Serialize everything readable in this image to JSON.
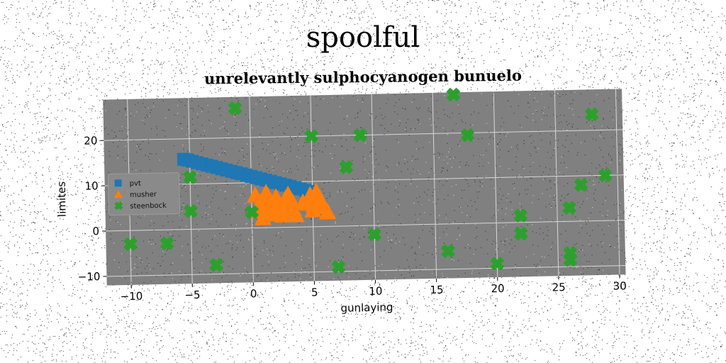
{
  "suptitle": "spoolful",
  "chart_data": {
    "type": "scatter",
    "title": "unrelevantly sulphocyanogen bunuelo",
    "xlabel": "gunlaying",
    "ylabel": "limites",
    "xlim": [
      -12,
      30.5
    ],
    "ylim": [
      -12,
      29
    ],
    "xticks": [
      -10,
      -5,
      0,
      5,
      10,
      15,
      20,
      25,
      30
    ],
    "yticks": [
      -10,
      0,
      10,
      20
    ],
    "xtick_labels": [
      "−10",
      "−5",
      "0",
      "5",
      "10",
      "15",
      "20",
      "25",
      "30"
    ],
    "ytick_labels": [
      "−10",
      "0",
      "10",
      "20"
    ],
    "grid": true,
    "background": "#808080",
    "legend_position": "center-left",
    "series": [
      {
        "name": "pvt",
        "marker": "square",
        "color": "#1f77b4",
        "x": [
          -5.5,
          -5.2,
          -4.8,
          -4.4,
          -4.0,
          -3.6,
          -3.2,
          -2.8,
          -2.4,
          -2.0,
          -1.6,
          -1.2,
          -0.8,
          -0.4,
          0.0,
          0.4,
          0.8,
          1.2,
          1.6,
          2.0,
          2.4,
          2.8,
          3.2,
          3.6,
          4.0,
          4.4,
          4.8
        ],
        "y": [
          15.5,
          15.3,
          15.0,
          14.7,
          14.4,
          14.1,
          13.8,
          13.5,
          13.2,
          12.9,
          12.6,
          12.3,
          12.0,
          11.7,
          11.4,
          11.1,
          10.8,
          10.5,
          10.2,
          9.9,
          9.6,
          9.3,
          9.0,
          8.7,
          8.4,
          8.1,
          7.8
        ]
      },
      {
        "name": "musher",
        "marker": "triangle",
        "color": "#ff7f0e",
        "x": [
          0.3,
          0.7,
          1.0,
          1.2,
          1.5,
          1.8,
          2.0,
          2.3,
          2.6,
          3.0,
          3.3,
          3.6,
          0.6,
          1.1,
          1.7,
          2.2,
          2.8,
          3.4,
          4.2,
          4.8,
          5.1,
          5.3,
          5.6,
          5.9,
          6.2,
          5.0,
          4.6,
          1.4,
          0.9,
          2.5
        ],
        "y": [
          7.0,
          5.5,
          4.0,
          7.5,
          5.0,
          3.2,
          6.5,
          4.5,
          3.5,
          7.0,
          5.5,
          2.5,
          3.5,
          6.0,
          2.8,
          4.8,
          6.2,
          3.8,
          5.2,
          6.8,
          4.6,
          7.5,
          5.8,
          4.2,
          3.0,
          3.5,
          5.0,
          4.0,
          2.0,
          2.5
        ]
      },
      {
        "name": "steenbock",
        "marker": "plus",
        "color": "#2ca02c",
        "x": [
          -1.2,
          16.7,
          5.0,
          9.0,
          28.0,
          17.8,
          7.8,
          -5.0,
          29.0,
          27.0,
          -5.0,
          0.0,
          22.0,
          26.0,
          22.0,
          10.0,
          -10.0,
          -7.0,
          16.0,
          26.0,
          26.0,
          -3.0,
          7.0,
          20.0
        ],
        "y": [
          26.5,
          28.5,
          20.0,
          20.0,
          23.5,
          19.5,
          13.0,
          11.5,
          10.0,
          8.0,
          4.0,
          3.5,
          1.5,
          3.0,
          -2.5,
          -2.0,
          -3.0,
          -3.0,
          -6.0,
          -7.0,
          -8.5,
          -8.0,
          -9.0,
          -9.0
        ]
      }
    ]
  }
}
